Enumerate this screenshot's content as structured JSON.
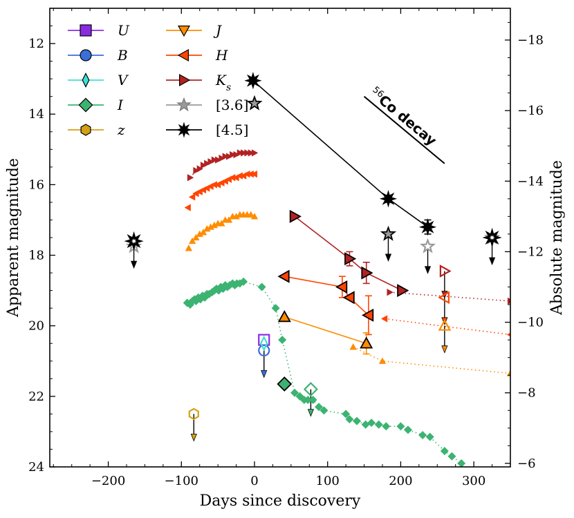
{
  "chart_data": {
    "type": "scatter",
    "xlabel": "Days since discovery",
    "ylabel": "Apparent magnitude",
    "ylabel_right": "Absolute magnitude",
    "xlim": [
      -280,
      350
    ],
    "ylim": [
      24,
      11
    ],
    "ylim_right": [
      -5.9,
      -18.9
    ],
    "x_ticks": [
      -200,
      -100,
      0,
      100,
      200,
      300
    ],
    "y_ticks": [
      12,
      14,
      16,
      18,
      20,
      22,
      24
    ],
    "y_ticks_right": [
      -18,
      -16,
      -14,
      -12,
      -10,
      -8,
      -6
    ],
    "legend_position": "top-left",
    "colors": {
      "U": "#8a2be2",
      "B": "#3a6fd8",
      "V": "#40e0d0",
      "I": "#3cb371",
      "z": "#d4a017",
      "J": "#ff8c00",
      "H": "#ff4500",
      "Ks": "#b22222",
      "ch1": "#999999",
      "ch2": "#000000"
    },
    "annotation": {
      "sup": "56",
      "text": "Co decay",
      "line_x": [
        150,
        260
      ],
      "line_y": [
        13.5,
        15.4
      ]
    },
    "legend": [
      {
        "key": "U",
        "label": "U",
        "marker": "square"
      },
      {
        "key": "B",
        "label": "B",
        "marker": "circle"
      },
      {
        "key": "V",
        "label": "V",
        "marker": "thin-diamond"
      },
      {
        "key": "I",
        "label": "I",
        "marker": "diamond"
      },
      {
        "key": "z",
        "label": "z",
        "marker": "hexagon"
      },
      {
        "key": "J",
        "label": "J",
        "marker": "tri-down"
      },
      {
        "key": "H",
        "label": "H",
        "marker": "tri-left"
      },
      {
        "key": "Ks",
        "label": "K",
        "sub": "s",
        "marker": "tri-right"
      },
      {
        "key": "ch1",
        "label": "[3.6]",
        "marker": "star5"
      },
      {
        "key": "ch2",
        "label": "[4.5]",
        "marker": "star8"
      }
    ],
    "series": [
      {
        "key": "I",
        "style": "small-diamond",
        "line": "dotted",
        "x": [
          -92,
          -88,
          -85,
          -82,
          -80,
          -77,
          -74,
          -71,
          -68,
          -65,
          -62,
          -58,
          -55,
          -52,
          -49,
          -46,
          -43,
          -40,
          -37,
          -34,
          -30,
          -27,
          -24,
          -20,
          -15,
          10,
          29,
          38,
          55,
          62,
          68,
          73,
          80,
          88,
          95,
          125,
          130,
          140,
          152,
          160,
          170,
          180,
          200,
          210,
          230,
          240,
          260,
          270,
          283
        ],
        "y": [
          19.35,
          19.4,
          19.3,
          19.25,
          19.3,
          19.2,
          19.25,
          19.15,
          19.2,
          19.1,
          19.1,
          19.05,
          19.0,
          18.95,
          19.0,
          18.9,
          18.95,
          18.85,
          18.9,
          18.85,
          18.8,
          18.85,
          18.8,
          18.8,
          18.75,
          18.9,
          19.5,
          20.4,
          21.9,
          22.0,
          22.1,
          22.1,
          22.1,
          22.3,
          22.4,
          22.5,
          22.65,
          22.7,
          22.8,
          22.75,
          22.8,
          22.85,
          22.85,
          22.95,
          23.1,
          23.15,
          23.55,
          23.7,
          23.9
        ]
      },
      {
        "key": "I",
        "style": "big-diamond",
        "line": "none",
        "x": [
          41
        ],
        "y": [
          21.65
        ]
      },
      {
        "key": "I",
        "style": "open-diamond",
        "line": "none",
        "x": [
          77
        ],
        "y": [
          21.8
        ],
        "upper_limit": true
      },
      {
        "key": "J",
        "style": "small",
        "line": "none",
        "x": [
          -90,
          -85,
          -80,
          -75,
          -70,
          -65,
          -60,
          -55,
          -50,
          -45,
          -40,
          -35,
          -30,
          -25,
          -20,
          -15,
          -10,
          -5,
          0
        ],
        "y": [
          17.8,
          17.6,
          17.5,
          17.4,
          17.35,
          17.25,
          17.2,
          17.15,
          17.1,
          17.1,
          17.0,
          17.0,
          16.9,
          16.9,
          16.85,
          16.85,
          16.85,
          16.85,
          16.9
        ]
      },
      {
        "key": "J",
        "style": "big",
        "line": "solid",
        "x": [
          41,
          153
        ],
        "y": [
          19.75,
          20.5
        ]
      },
      {
        "key": "J",
        "style": "small",
        "line": "dotted",
        "x": [
          135,
          175,
          350
        ],
        "y": [
          20.6,
          21.0,
          21.35
        ]
      },
      {
        "key": "J",
        "style": "open",
        "line": "none",
        "x": [
          260
        ],
        "y": [
          20.0
        ],
        "upper_limit": true
      },
      {
        "key": "H",
        "style": "small",
        "line": "none",
        "x": [
          -91,
          -85,
          -80,
          -75,
          -70,
          -65,
          -60,
          -55,
          -50,
          -45,
          -40,
          -35,
          -30,
          -25,
          -20,
          -15,
          -10,
          -5,
          0
        ],
        "y": [
          16.65,
          16.35,
          16.25,
          16.2,
          16.15,
          16.1,
          16.05,
          16.0,
          16.0,
          15.95,
          15.9,
          15.85,
          15.8,
          15.8,
          15.75,
          15.75,
          15.7,
          15.7,
          15.7
        ]
      },
      {
        "key": "H",
        "style": "big",
        "line": "solid",
        "x": [
          41,
          120,
          130,
          156
        ],
        "y": [
          18.6,
          18.9,
          19.2,
          19.7
        ]
      },
      {
        "key": "H",
        "style": "small",
        "line": "dotted",
        "x": [
          178,
          350
        ],
        "y": [
          19.8,
          20.25
        ]
      },
      {
        "key": "H",
        "style": "open",
        "line": "none",
        "x": [
          260
        ],
        "y": [
          19.2
        ],
        "upper_limit": true
      },
      {
        "key": "Ks",
        "style": "small",
        "line": "dotted",
        "x": [
          -88,
          -80,
          -75,
          -70,
          -65,
          -60,
          -55,
          -50,
          -45,
          -40,
          -35,
          -30,
          -25,
          -20,
          -15,
          -10,
          -5,
          0
        ],
        "y": [
          15.8,
          15.6,
          15.55,
          15.45,
          15.4,
          15.35,
          15.3,
          15.3,
          15.25,
          15.2,
          15.2,
          15.15,
          15.15,
          15.1,
          15.1,
          15.1,
          15.1,
          15.1
        ]
      },
      {
        "key": "Ks",
        "style": "big",
        "line": "solid",
        "x": [
          55,
          130,
          153,
          202
        ],
        "y": [
          16.9,
          18.1,
          18.5,
          19.0
        ]
      },
      {
        "key": "Ks",
        "style": "small",
        "line": "dotted",
        "x": [
          185,
          350
        ],
        "y": [
          19.05,
          19.3
        ]
      },
      {
        "key": "Ks",
        "style": "open",
        "line": "none",
        "x": [
          260
        ],
        "y": [
          18.45
        ],
        "upper_limit": true
      },
      {
        "key": "ch2",
        "style": "big",
        "line": "solid",
        "x": [
          -2,
          183,
          237
        ],
        "y": [
          13.05,
          16.4,
          17.2
        ]
      },
      {
        "key": "ch1",
        "style": "big",
        "line": "none",
        "x": [
          0
        ],
        "y": [
          13.7
        ]
      },
      {
        "key": "ch1",
        "style": "big",
        "line": "none",
        "x": [
          183
        ],
        "y": [
          17.4
        ],
        "upper_limit": true
      },
      {
        "key": "ch1",
        "style": "open",
        "line": "none",
        "x": [
          237
        ],
        "y": [
          17.75
        ],
        "upper_limit": true
      },
      {
        "key": "ch1",
        "style": "open",
        "line": "none",
        "x": [
          -165
        ],
        "y": [
          17.75
        ]
      },
      {
        "key": "ch2",
        "style": "open",
        "line": "none",
        "x": [
          -165
        ],
        "y": [
          17.6
        ],
        "upper_limit": true
      },
      {
        "key": "ch1",
        "style": "open",
        "line": "none",
        "x": [
          325
        ],
        "y": [
          17.5
        ]
      },
      {
        "key": "ch2",
        "style": "open",
        "line": "none",
        "x": [
          325
        ],
        "y": [
          17.5
        ],
        "upper_limit": true
      },
      {
        "key": "U",
        "style": "open",
        "line": "none",
        "x": [
          13
        ],
        "y": [
          20.4
        ]
      },
      {
        "key": "B",
        "style": "open",
        "line": "none",
        "x": [
          13
        ],
        "y": [
          20.7
        ],
        "upper_limit": true
      },
      {
        "key": "V",
        "style": "open",
        "line": "none",
        "x": [
          13
        ],
        "y": [
          20.5
        ]
      },
      {
        "key": "z",
        "style": "open",
        "line": "none",
        "x": [
          -83
        ],
        "y": [
          22.5
        ],
        "upper_limit": true
      }
    ],
    "error_bars": [
      {
        "key": "H",
        "x": 120,
        "y": 18.9,
        "err": 0.3
      },
      {
        "key": "H",
        "x": 156,
        "y": 19.7,
        "err": 0.55
      },
      {
        "key": "Ks",
        "x": 130,
        "y": 18.1,
        "err": 0.2
      },
      {
        "key": "Ks",
        "x": 153,
        "y": 18.5,
        "err": 0.3
      },
      {
        "key": "J",
        "x": 153,
        "y": 20.5,
        "err": 0.3
      },
      {
        "key": "ch2",
        "x": 237,
        "y": 17.2,
        "err": 0.2
      },
      {
        "key": "ch2",
        "x": 183,
        "y": 16.4,
        "err": 0.1
      },
      {
        "key": "ch2",
        "x": -2,
        "y": 13.05,
        "err": 0.08
      }
    ]
  }
}
